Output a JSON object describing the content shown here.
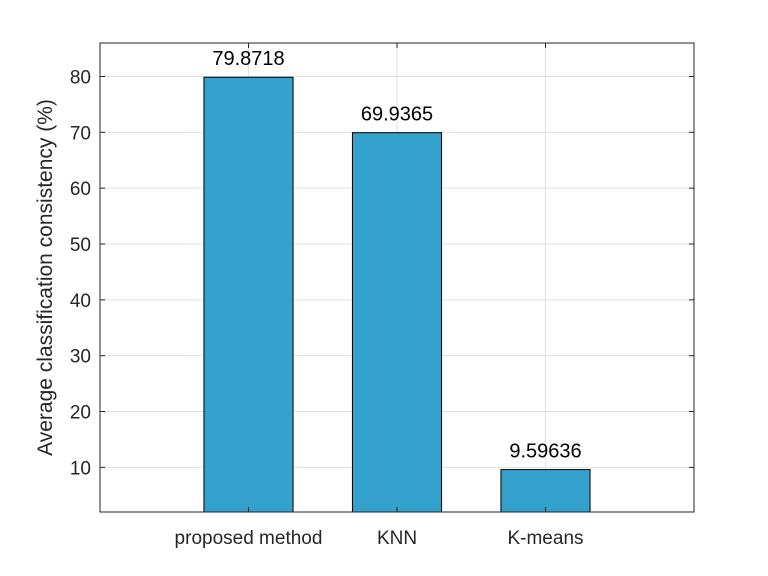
{
  "chart_data": {
    "type": "bar",
    "title": "",
    "xlabel": "",
    "ylabel": "Average classification consistency (%)",
    "categories": [
      "proposed method",
      "KNN",
      "K-means"
    ],
    "values": [
      79.8718,
      69.9365,
      9.59636
    ],
    "data_labels": [
      "79.8718",
      "69.9365",
      "9.59636"
    ],
    "xlim": [
      0,
      4
    ],
    "ylim": [
      2,
      86
    ],
    "yticks": [
      10,
      20,
      30,
      40,
      50,
      60,
      70,
      80
    ],
    "ytick_labels": [
      "10",
      "20",
      "30",
      "40",
      "50",
      "60",
      "70",
      "80"
    ],
    "grid": true,
    "bar_color": "#33A1CC",
    "bar_edge_color": "#000000",
    "grid_color": "#E1E1E1",
    "axis_color": "#262626"
  }
}
